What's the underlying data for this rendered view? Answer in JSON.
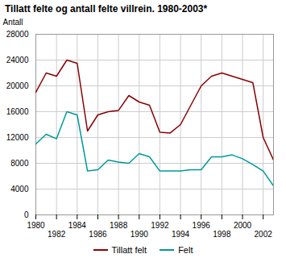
{
  "chart_data": {
    "type": "line",
    "title": "Tillatt felte og antall felte villrein. 1980-2003*",
    "y_label": "Antall",
    "x": [
      1980,
      1981,
      1982,
      1983,
      1984,
      1985,
      1986,
      1987,
      1988,
      1989,
      1990,
      1991,
      1992,
      1993,
      1994,
      1995,
      1996,
      1997,
      1998,
      1999,
      2000,
      2001,
      2002,
      2003
    ],
    "series": [
      {
        "name": "Tillatt felt",
        "color": "#8B0000",
        "values": [
          19000,
          22000,
          21500,
          24000,
          23500,
          13000,
          15500,
          16000,
          16200,
          18500,
          17500,
          17000,
          12800,
          12700,
          14000,
          17000,
          20000,
          21500,
          22000,
          21500,
          21000,
          20500,
          12000,
          8500
        ]
      },
      {
        "name": "Felt",
        "color": "#009999",
        "values": [
          11000,
          12500,
          11800,
          16000,
          15500,
          6800,
          7000,
          8500,
          8200,
          8000,
          9500,
          9000,
          6800,
          6800,
          6800,
          7000,
          7000,
          9000,
          9000,
          9300,
          8700,
          7800,
          6800,
          4500
        ]
      }
    ],
    "xlim": [
      1980,
      2003
    ],
    "xticks": [
      1980,
      1982,
      1984,
      1986,
      1988,
      1990,
      1992,
      1994,
      1996,
      1998,
      2000,
      2002
    ],
    "ylim": [
      0,
      28000
    ],
    "yticks": [
      0,
      4000,
      8000,
      12000,
      16000,
      20000,
      24000,
      28000
    ],
    "grid": true,
    "legend": "bottom"
  }
}
